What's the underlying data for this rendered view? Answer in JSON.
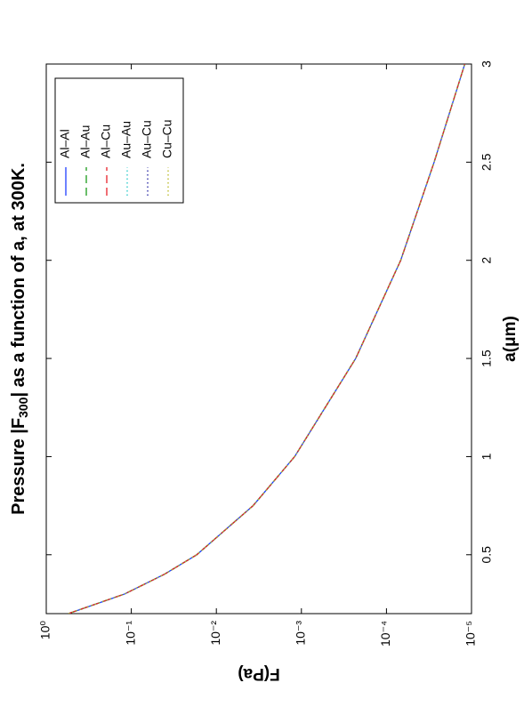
{
  "chart_data": {
    "type": "line",
    "title": [
      "Pressure |F",
      "300",
      "| as a function of a, at 300K."
    ],
    "x_label": "a(μm)",
    "y_label": "F(Pa)",
    "x": [
      0.2,
      0.3,
      0.4,
      0.5,
      0.75,
      1,
      1.5,
      2,
      2.5,
      3
    ],
    "series": [
      {
        "name": "Al–Al",
        "color": "#1f3fff",
        "dash": "solid",
        "values": [
          0.55,
          0.12,
          0.041,
          0.017,
          0.0037,
          0.0012,
          0.00023,
          6.8e-05,
          2.75e-05,
          1.2e-05
        ]
      },
      {
        "name": "Al–Au",
        "color": "#1a9a1a",
        "dash": "dashed",
        "values": [
          0.55,
          0.12,
          0.041,
          0.017,
          0.0037,
          0.0012,
          0.00023,
          6.8e-05,
          2.75e-05,
          1.2e-05
        ]
      },
      {
        "name": "Al–Cu",
        "color": "#e8202a",
        "dash": "dashed",
        "values": [
          0.55,
          0.12,
          0.041,
          0.017,
          0.0037,
          0.0012,
          0.00023,
          6.8e-05,
          2.75e-05,
          1.2e-05
        ]
      },
      {
        "name": "Au–Au",
        "color": "#22c8c8",
        "dash": "dotted",
        "values": [
          0.55,
          0.12,
          0.041,
          0.017,
          0.0037,
          0.0012,
          0.00023,
          6.8e-05,
          2.75e-05,
          1.2e-05
        ]
      },
      {
        "name": "Au–Cu",
        "color": "#2020a0",
        "dash": "dotted",
        "values": [
          0.55,
          0.12,
          0.041,
          0.017,
          0.0037,
          0.0012,
          0.00023,
          6.8e-05,
          2.75e-05,
          1.2e-05
        ]
      },
      {
        "name": "Cu–Cu",
        "color": "#b8b820",
        "dash": "dotted",
        "values": [
          0.55,
          0.12,
          0.041,
          0.017,
          0.0037,
          0.0012,
          0.00023,
          6.8e-05,
          2.75e-05,
          1.2e-05
        ]
      }
    ],
    "xlim": [
      0.2,
      3
    ],
    "xticks": [
      0.5,
      1,
      1.5,
      2,
      2.5,
      3
    ],
    "ylim": [
      1e-05,
      1
    ],
    "yscale": "log",
    "yticks": [
      {
        "value": 1,
        "label": "10⁰"
      },
      {
        "value": 0.1,
        "label": "10⁻¹"
      },
      {
        "value": 0.01,
        "label": "10⁻²"
      },
      {
        "value": 0.001,
        "label": "10⁻³"
      },
      {
        "value": 0.0001,
        "label": "10⁻⁴"
      },
      {
        "value": 1e-05,
        "label": "10⁻⁵"
      }
    ],
    "legend": "upper right"
  }
}
